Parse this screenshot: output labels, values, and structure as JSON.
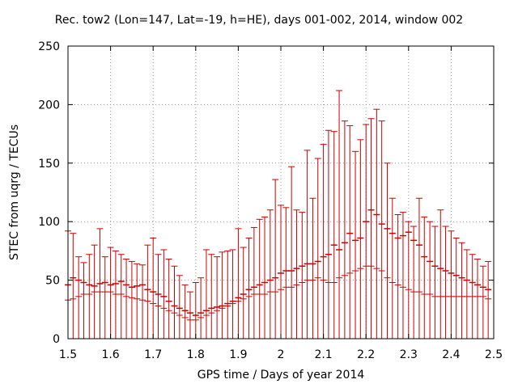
{
  "chart_data": {
    "type": "errorbar",
    "title": "Rec. tow2 (Lon=147, Lat=-19, h=HE), days 001-002, 2014, window 002",
    "xlabel": "GPS time / Days of year 2014",
    "ylabel": "STEC from uqrg / TECUs",
    "xlim": [
      1.5,
      2.5
    ],
    "ylim": [
      0,
      250
    ],
    "xticks": [
      1.5,
      1.6,
      1.7,
      1.8,
      1.9,
      2.0,
      2.1,
      2.2,
      2.3,
      2.4,
      2.5
    ],
    "xtick_labels": [
      "1.5",
      "1.6",
      "1.7",
      "1.8",
      "1.9",
      "2",
      "2.1",
      "2.2",
      "2.3",
      "2.4",
      "2.5"
    ],
    "yticks": [
      0,
      50,
      100,
      150,
      200,
      250
    ],
    "ytick_labels": [
      "0",
      "50",
      "100",
      "150",
      "200",
      "250"
    ],
    "grid": true,
    "series_color": "#cc0000",
    "x": [
      1.5,
      1.512,
      1.525,
      1.537,
      1.55,
      1.562,
      1.575,
      1.587,
      1.6,
      1.612,
      1.625,
      1.637,
      1.65,
      1.662,
      1.675,
      1.687,
      1.7,
      1.712,
      1.725,
      1.737,
      1.75,
      1.762,
      1.775,
      1.787,
      1.8,
      1.812,
      1.825,
      1.837,
      1.85,
      1.862,
      1.875,
      1.887,
      1.9,
      1.912,
      1.925,
      1.937,
      1.95,
      1.962,
      1.975,
      1.987,
      2.0,
      2.012,
      2.025,
      2.037,
      2.05,
      2.062,
      2.075,
      2.087,
      2.1,
      2.112,
      2.125,
      2.137,
      2.15,
      2.162,
      2.175,
      2.187,
      2.2,
      2.212,
      2.225,
      2.237,
      2.25,
      2.262,
      2.275,
      2.287,
      2.3,
      2.312,
      2.325,
      2.337,
      2.35,
      2.362,
      2.375,
      2.387,
      2.4,
      2.412,
      2.425,
      2.437,
      2.45,
      2.462,
      2.475,
      2.487
    ],
    "y_upper": [
      92,
      90,
      70,
      65,
      72,
      80,
      94,
      70,
      78,
      75,
      72,
      68,
      66,
      64,
      63,
      80,
      86,
      72,
      76,
      68,
      62,
      54,
      46,
      40,
      48,
      52,
      76,
      72,
      70,
      74,
      75,
      76,
      94,
      78,
      86,
      95,
      102,
      104,
      110,
      136,
      114,
      112,
      147,
      110,
      108,
      161,
      120,
      154,
      166,
      178,
      177,
      212,
      186,
      182,
      160,
      170,
      183,
      188,
      196,
      186,
      150,
      120,
      106,
      108,
      100,
      96,
      120,
      104,
      100,
      96,
      110,
      96,
      92,
      86,
      82,
      76,
      72,
      68,
      62,
      66
    ],
    "y_lower": [
      33,
      34,
      36,
      38,
      38,
      40,
      40,
      40,
      40,
      38,
      38,
      36,
      35,
      34,
      33,
      32,
      30,
      28,
      26,
      24,
      22,
      20,
      18,
      16,
      16,
      18,
      20,
      22,
      24,
      26,
      28,
      30,
      32,
      34,
      36,
      38,
      38,
      38,
      40,
      40,
      42,
      44,
      44,
      46,
      48,
      50,
      50,
      52,
      50,
      48,
      48,
      52,
      54,
      56,
      58,
      60,
      62,
      62,
      60,
      58,
      52,
      48,
      46,
      44,
      42,
      40,
      40,
      38,
      38,
      36,
      36,
      36,
      36,
      36,
      36,
      36,
      36,
      36,
      36,
      34
    ],
    "y_mid": [
      46,
      52,
      50,
      48,
      46,
      45,
      47,
      48,
      46,
      47,
      49,
      46,
      44,
      45,
      46,
      42,
      40,
      38,
      36,
      32,
      28,
      26,
      24,
      22,
      20,
      22,
      24,
      26,
      27,
      28,
      30,
      32,
      35,
      38,
      42,
      44,
      46,
      48,
      50,
      52,
      56,
      58,
      58,
      60,
      62,
      64,
      64,
      66,
      70,
      72,
      80,
      76,
      82,
      90,
      84,
      86,
      100,
      110,
      106,
      98,
      94,
      90,
      86,
      88,
      91,
      84,
      80,
      70,
      66,
      62,
      60,
      58,
      56,
      54,
      52,
      50,
      48,
      46,
      44,
      42
    ]
  }
}
